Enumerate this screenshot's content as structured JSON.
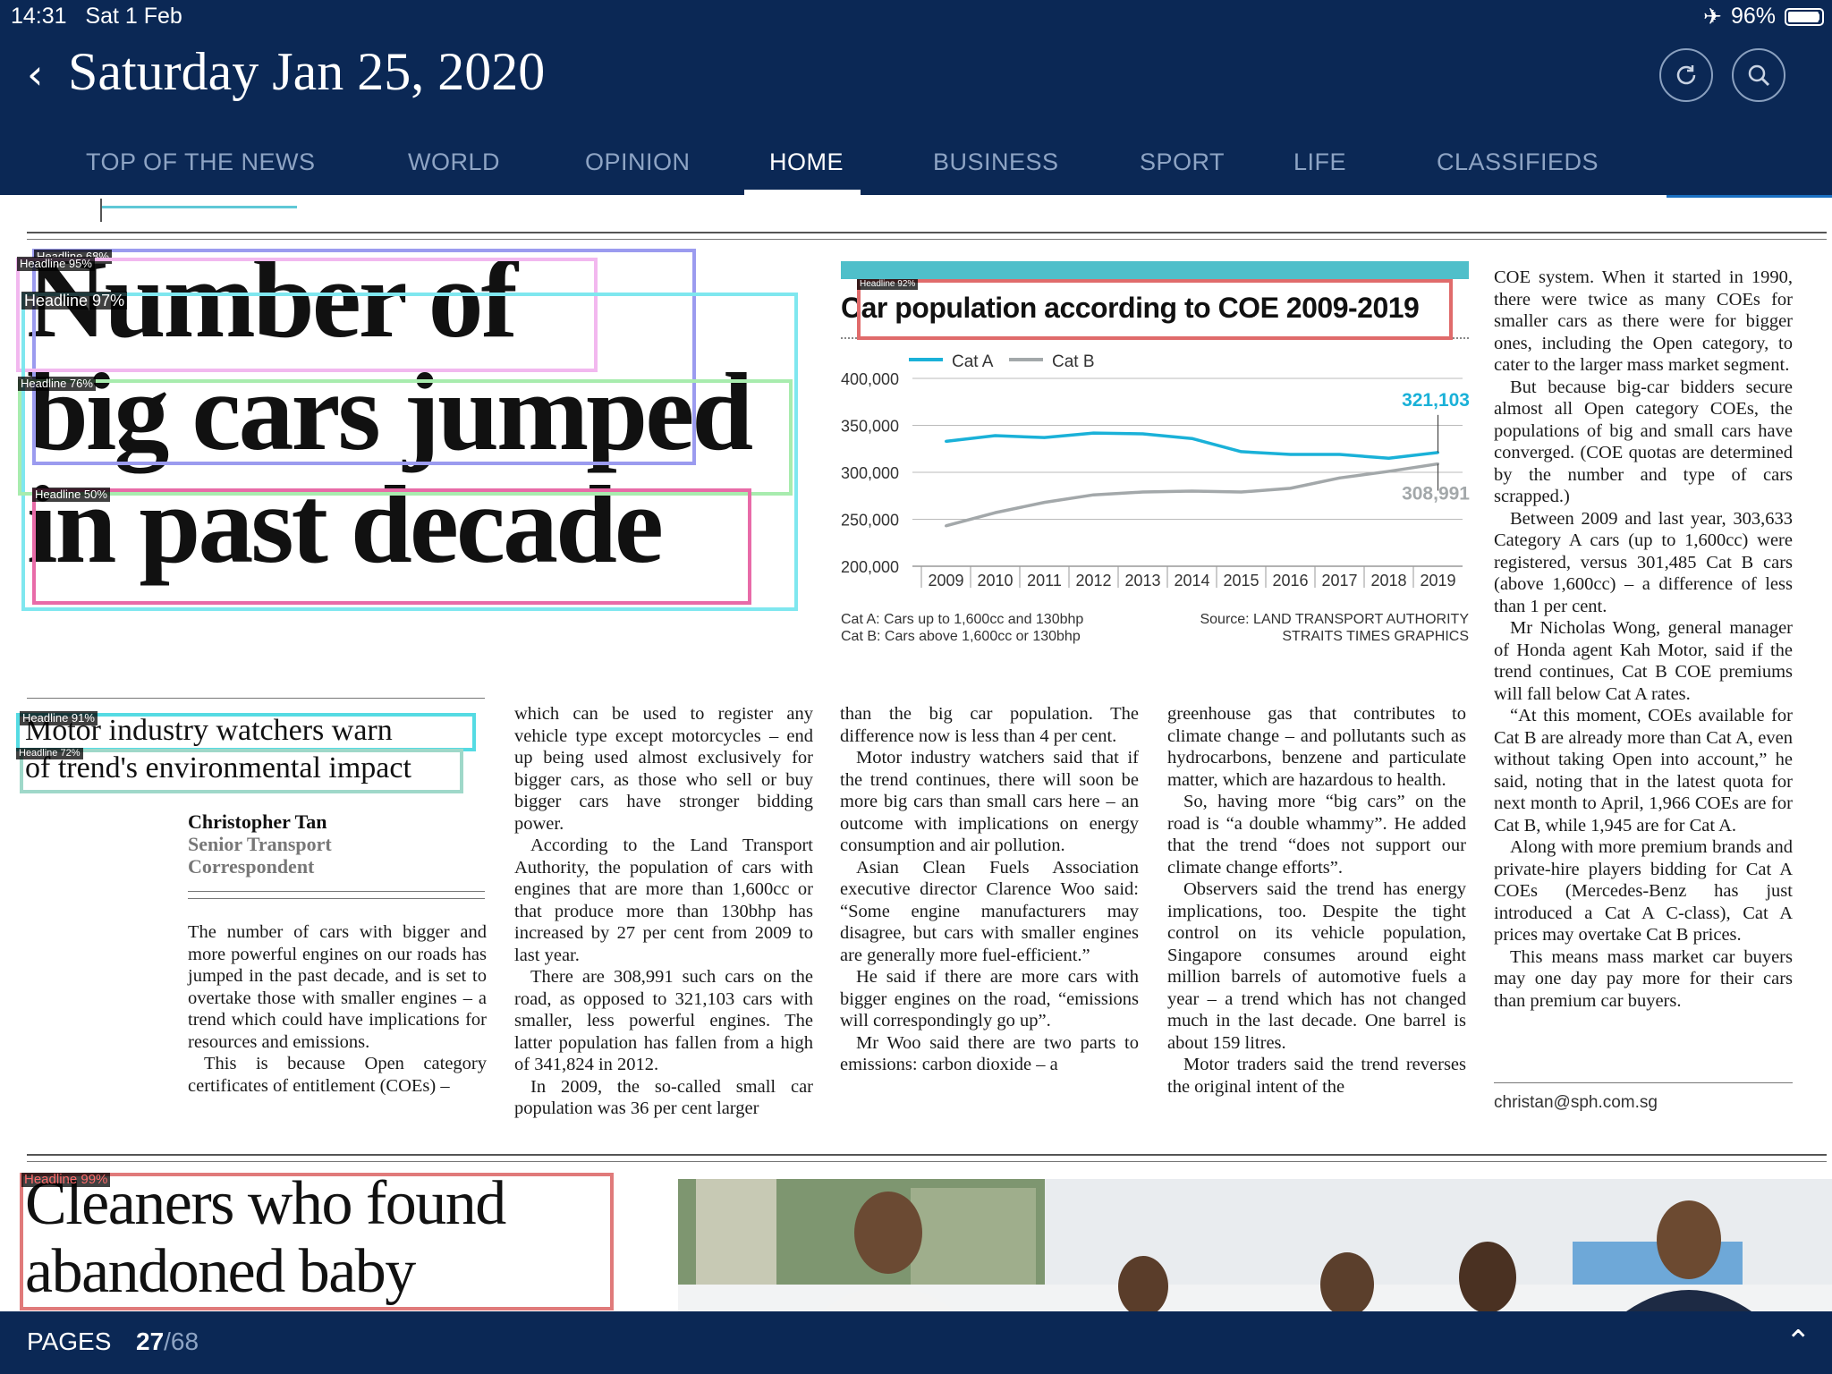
{
  "status": {
    "time": "14:31",
    "date": "Sat 1 Feb",
    "battery": "96%"
  },
  "header": {
    "title": "Saturday Jan 25, 2020"
  },
  "nav": [
    {
      "label": "TOP OF THE NEWS"
    },
    {
      "label": "WORLD"
    },
    {
      "label": "OPINION"
    },
    {
      "label": "HOME",
      "active": true
    },
    {
      "label": "BUSINESS"
    },
    {
      "label": "SPORT"
    },
    {
      "label": "LIFE"
    },
    {
      "label": "CLASSIFIEDS"
    }
  ],
  "article": {
    "headline_lines": [
      "Number of",
      "big cars jumped",
      "in past decade"
    ],
    "subhead_lines": [
      "Motor industry watchers warn",
      "of trend's environmental impact"
    ],
    "byline": {
      "name": "Christopher Tan",
      "role_line1": "Senior Transport",
      "role_line2": "Correspondent"
    },
    "col1": [
      "The number of cars with bigger and more powerful engines on our roads has jumped in the past decade, and is set to overtake those with smaller engines – a trend which could have implications for resources and emissions.",
      "This is because Open category certificates of entitlement (COEs) –"
    ],
    "col2": [
      "which can be used to register any vehicle type except motorcycles – end up being used almost exclusively for bigger cars, as those who sell or buy bigger cars have stronger bidding power.",
      "According to the Land Transport Authority, the population of cars with engines that are more than 1,600cc or that produce more than 130bhp has increased by 27 per cent from 2009 to last year.",
      "There are 308,991 such cars on the road, as opposed to 321,103 cars with smaller, less powerful engines. The latter population has fallen from a high of 341,824 in 2012.",
      "In 2009, the so-called small car population was 36 per cent larger"
    ],
    "col3": [
      "than the big car population. The difference now is less than 4 per cent.",
      "Motor industry watchers said that if the trend continues, there will soon be more big cars than small cars here – an outcome with implications on energy consumption and air pollution.",
      "Asian Clean Fuels Association executive director Clarence Woo said: “Some engine manufacturers may disagree, but cars with smaller engines are generally more fuel-efficient.”",
      "He said if there are more cars with bigger engines on the road, “emissions will correspondingly go up”.",
      "Mr Woo said there are two parts to emissions: carbon dioxide – a"
    ],
    "col4": [
      "greenhouse gas that contributes to climate change – and pollutants such as hydrocarbons, benzene and particulate matter, which are hazardous to health.",
      "So, having more “big cars” on the road is “a double whammy”. He added that the trend “does not support our climate change efforts”.",
      "Observers said the trend has energy implications, too. Despite the tight control on its vehicle population, Singapore consumes around eight million barrels of automotive fuels a year – a trend which has not changed much in the last decade. One barrel is about 159 litres.",
      "Motor traders said the trend reverses the original intent of the"
    ],
    "col5": [
      "COE system. When it started in 1990, there were twice as many COEs for smaller cars as there were for bigger ones, including the Open category, to cater to the larger mass market segment.",
      "But because big-car bidders secure almost all Open category COEs, the populations of big and small cars have converged. (COE quotas are determined by the number and type of cars scrapped.)",
      "Between 2009 and last year, 303,633 Category A cars (up to 1,600cc) were registered, versus 301,485 Cat B cars (above 1,600cc) – a difference of less than 1 per cent.",
      "Mr Nicholas Wong, general manager of Honda agent Kah Motor, said if the trend continues, Cat B COE premiums will fall below Cat A rates.",
      "“At this moment, COEs available for Cat B are already more than Cat A, even without taking Open into account,” he said, noting that in the latest quota for next month to April, 1,966 COEs are for Cat B, while 1,945 are for Cat A.",
      "Along with more premium brands and private-hire players bidding for Cat A COEs (Mercedes-Benz has just introduced a Cat A C-class), Cat A prices may overtake Cat B prices.",
      "This means mass market car buyers may one day pay more for their cars than premium car buyers."
    ],
    "email": "christan@sph.com.sg"
  },
  "second_article": {
    "headline_lines": [
      "Cleaners who found",
      "abandoned baby"
    ]
  },
  "detections": [
    {
      "label": "Headline 68%",
      "color": "#9b9bef"
    },
    {
      "label": "Headline 95%",
      "color": "#f2b8ef"
    },
    {
      "label": "Headline 97%",
      "color": "#7fe7ef"
    },
    {
      "label": "Headline 76%",
      "color": "#a8ecae"
    },
    {
      "label": "Headline 50%",
      "color": "#e86ba8"
    },
    {
      "label": "Headline 92%",
      "color": "#e06b6b"
    },
    {
      "label": "Headline 91%",
      "color": "#55dbe3"
    },
    {
      "label": "Headline 72%",
      "color": "#9fd8c9"
    },
    {
      "label": "Headline 99%",
      "color": "#e07a7a"
    }
  ],
  "chart_data": {
    "type": "line",
    "title": "Car population according to COE 2009-2019",
    "x": [
      2009,
      2010,
      2011,
      2012,
      2013,
      2014,
      2015,
      2016,
      2017,
      2018,
      2019
    ],
    "series": [
      {
        "name": "Cat A",
        "color": "#1ab1d8",
        "values": [
          333000,
          339000,
          337000,
          341824,
          341000,
          336000,
          322000,
          319000,
          319000,
          315000,
          321103
        ]
      },
      {
        "name": "Cat B",
        "color": "#a3a8aa",
        "values": [
          243000,
          257000,
          268000,
          276000,
          279000,
          280000,
          279000,
          283000,
          294000,
          301000,
          308991
        ]
      }
    ],
    "ylim": [
      200000,
      400000
    ],
    "yticks": [
      "400,000",
      "350,000",
      "300,000",
      "250,000",
      "200,000"
    ],
    "xticks": [
      "2009",
      "2010",
      "2011",
      "2012",
      "2013",
      "2014",
      "2015",
      "2016",
      "2017",
      "2018",
      "2019"
    ],
    "end_labels": {
      "cat_a": "321,103",
      "cat_b": "308,991"
    },
    "notes": [
      "Cat A: Cars up to 1,600cc and 130bhp",
      "Cat B: Cars above 1,600cc or 130bhp"
    ],
    "source": [
      "Source: LAND TRANSPORT AUTHORITY",
      "STRAITS TIMES GRAPHICS"
    ],
    "grid": true,
    "legend": "top-left"
  },
  "footer": {
    "pages_label": "PAGES",
    "current": "27",
    "total": "/68"
  }
}
